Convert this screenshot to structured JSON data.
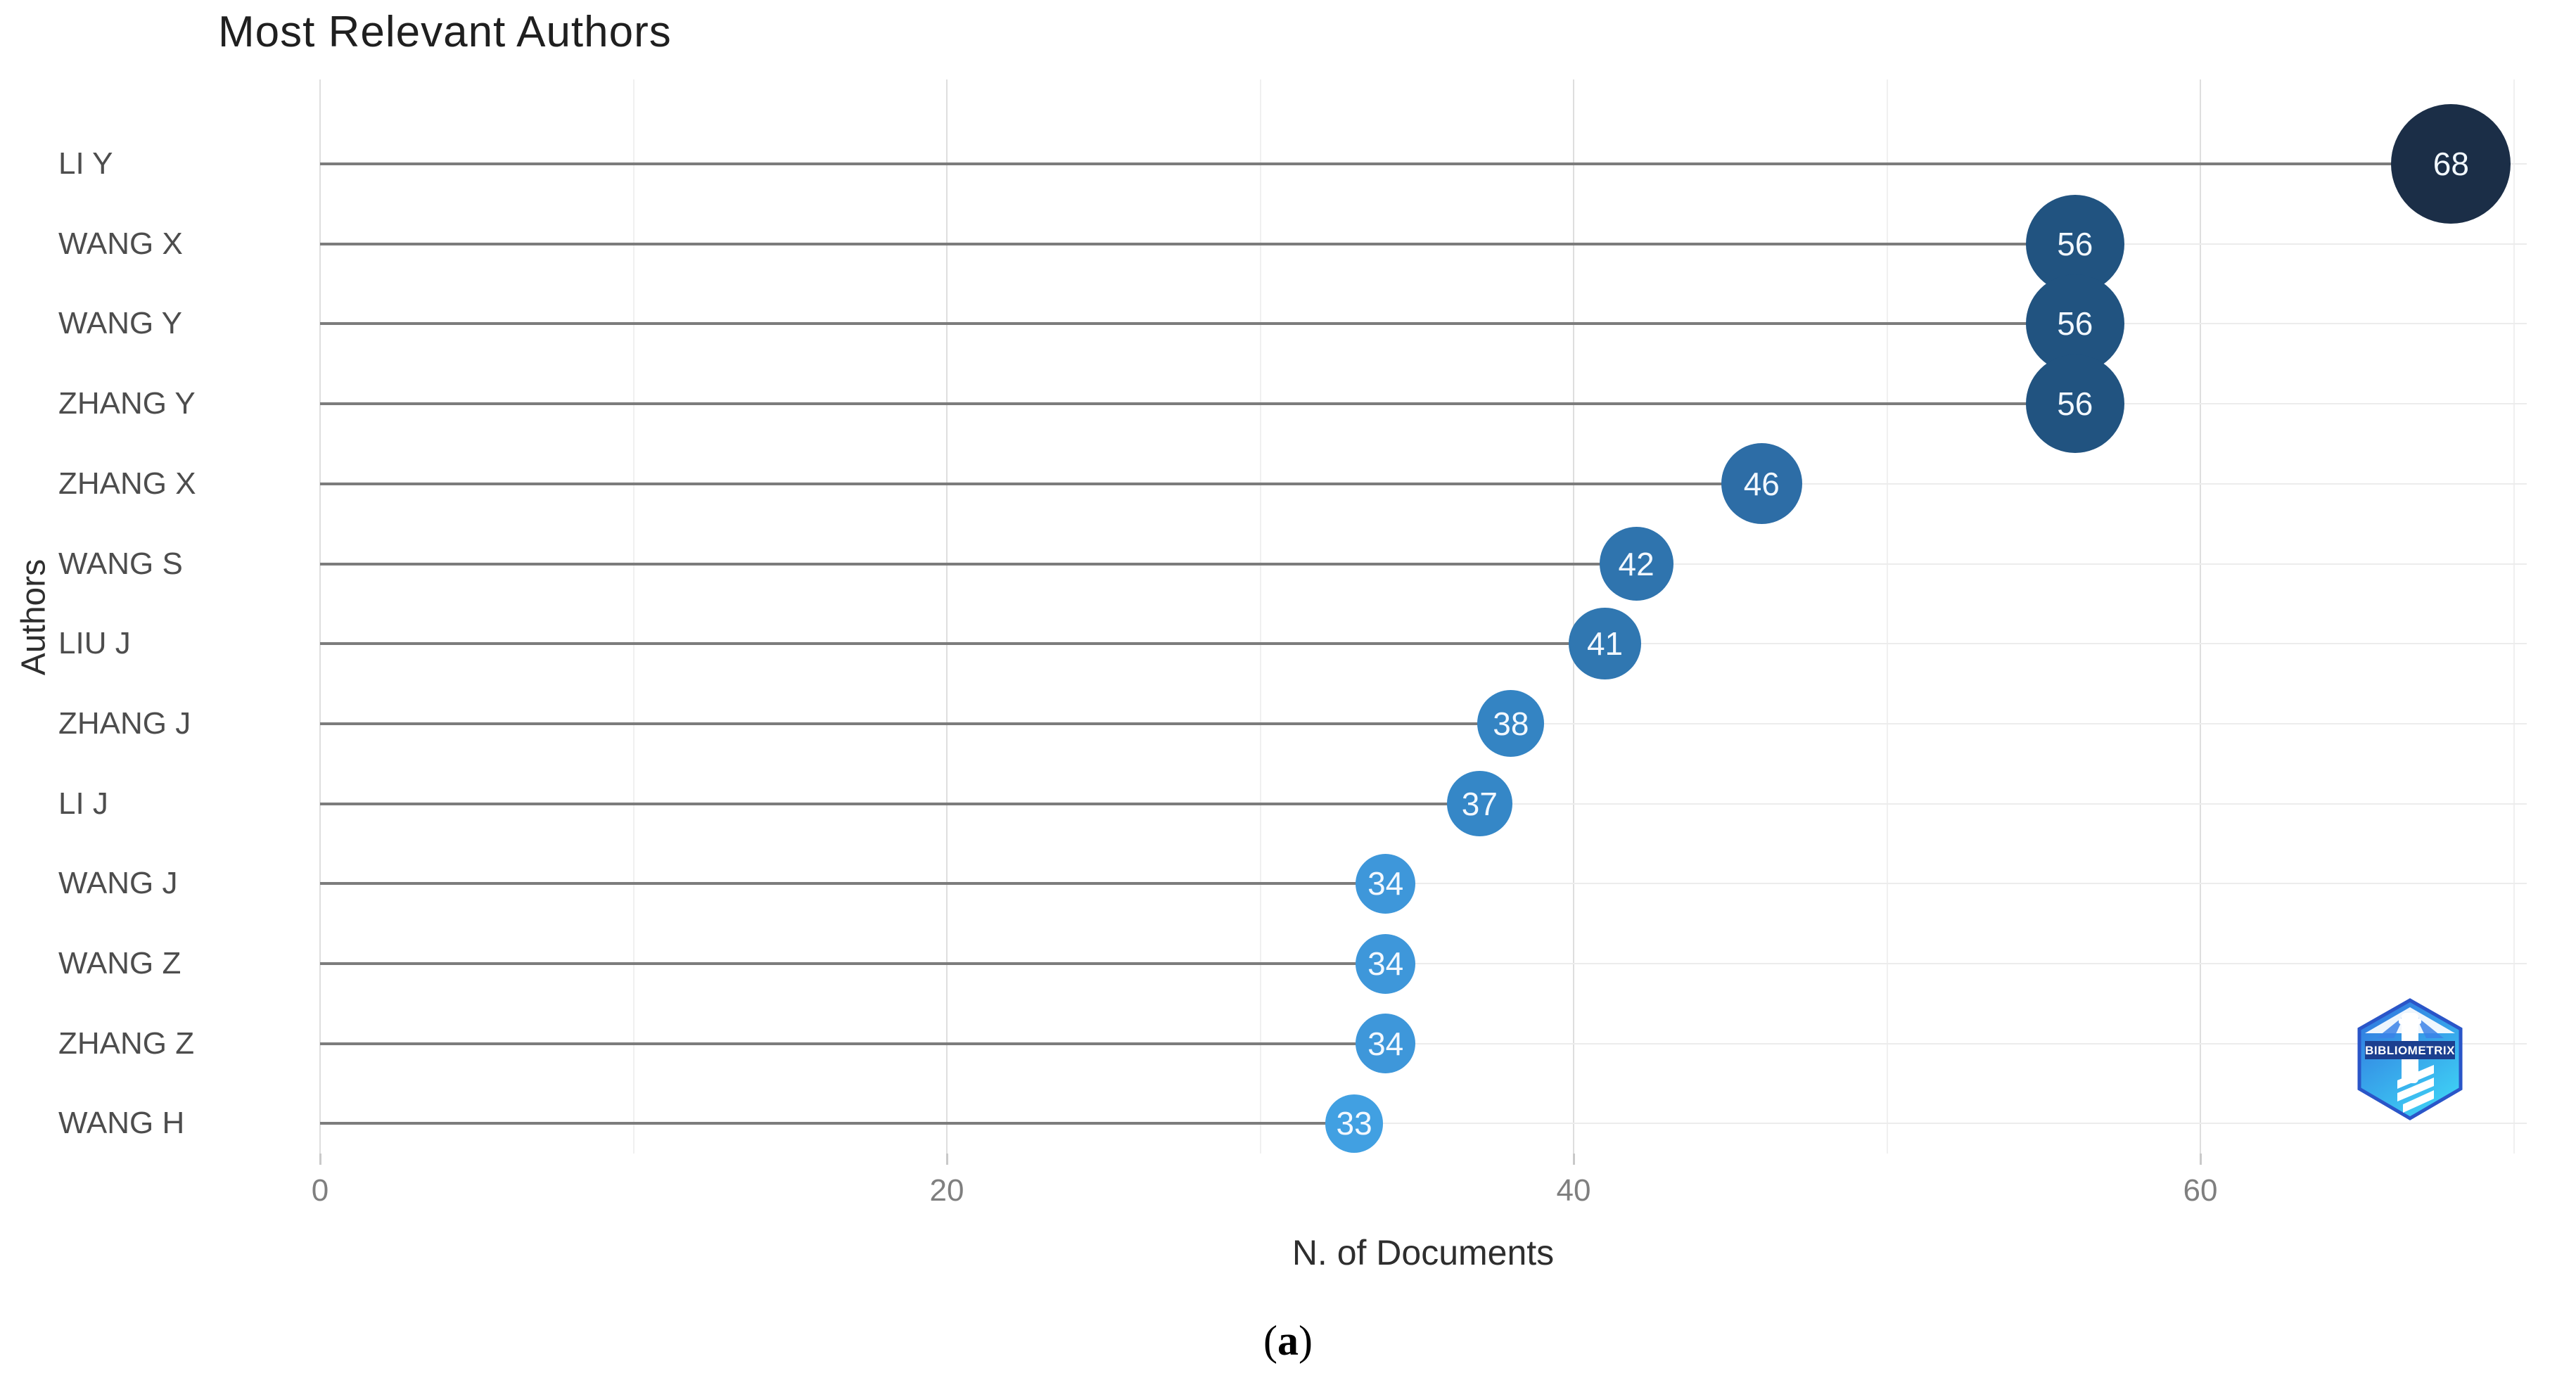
{
  "chart": {
    "title": "Most Relevant Authors",
    "y_axis_title": "Authors",
    "x_axis_title": "N. of Documents",
    "caption": {
      "prefix": "(",
      "label": "a",
      "suffix": ")"
    },
    "watermark_text": "BIBLIOMETRIX"
  },
  "chart_data": {
    "type": "scatter",
    "variant": "lollipop-dot-plot",
    "orientation": "horizontal",
    "title": "Most Relevant Authors",
    "xlabel": "N. of Documents",
    "ylabel": "Authors",
    "xlim": [
      0,
      70
    ],
    "x_major_ticks": [
      0,
      20,
      40,
      60
    ],
    "x_minor_gridlines": [
      10,
      30,
      50,
      70
    ],
    "grid": "on",
    "legend_position": "none",
    "categories": [
      "LI Y",
      "WANG X",
      "WANG Y",
      "ZHANG Y",
      "ZHANG X",
      "WANG S",
      "LIU J",
      "ZHANG J",
      "LI J",
      "WANG J",
      "WANG Z",
      "ZHANG Z",
      "WANG H"
    ],
    "values": [
      68,
      56,
      56,
      56,
      46,
      42,
      41,
      38,
      37,
      34,
      34,
      34,
      33
    ],
    "point_colors": [
      "#1b2e47",
      "#215380",
      "#215380",
      "#215380",
      "#2d6da6",
      "#2f74ae",
      "#3077b1",
      "#3484c3",
      "#3587c7",
      "#3e97da",
      "#3e97da",
      "#3e97da",
      "#41a0e2"
    ],
    "stem_color": "#7c7c7c",
    "label_color_inside_points": "#ffffff"
  }
}
